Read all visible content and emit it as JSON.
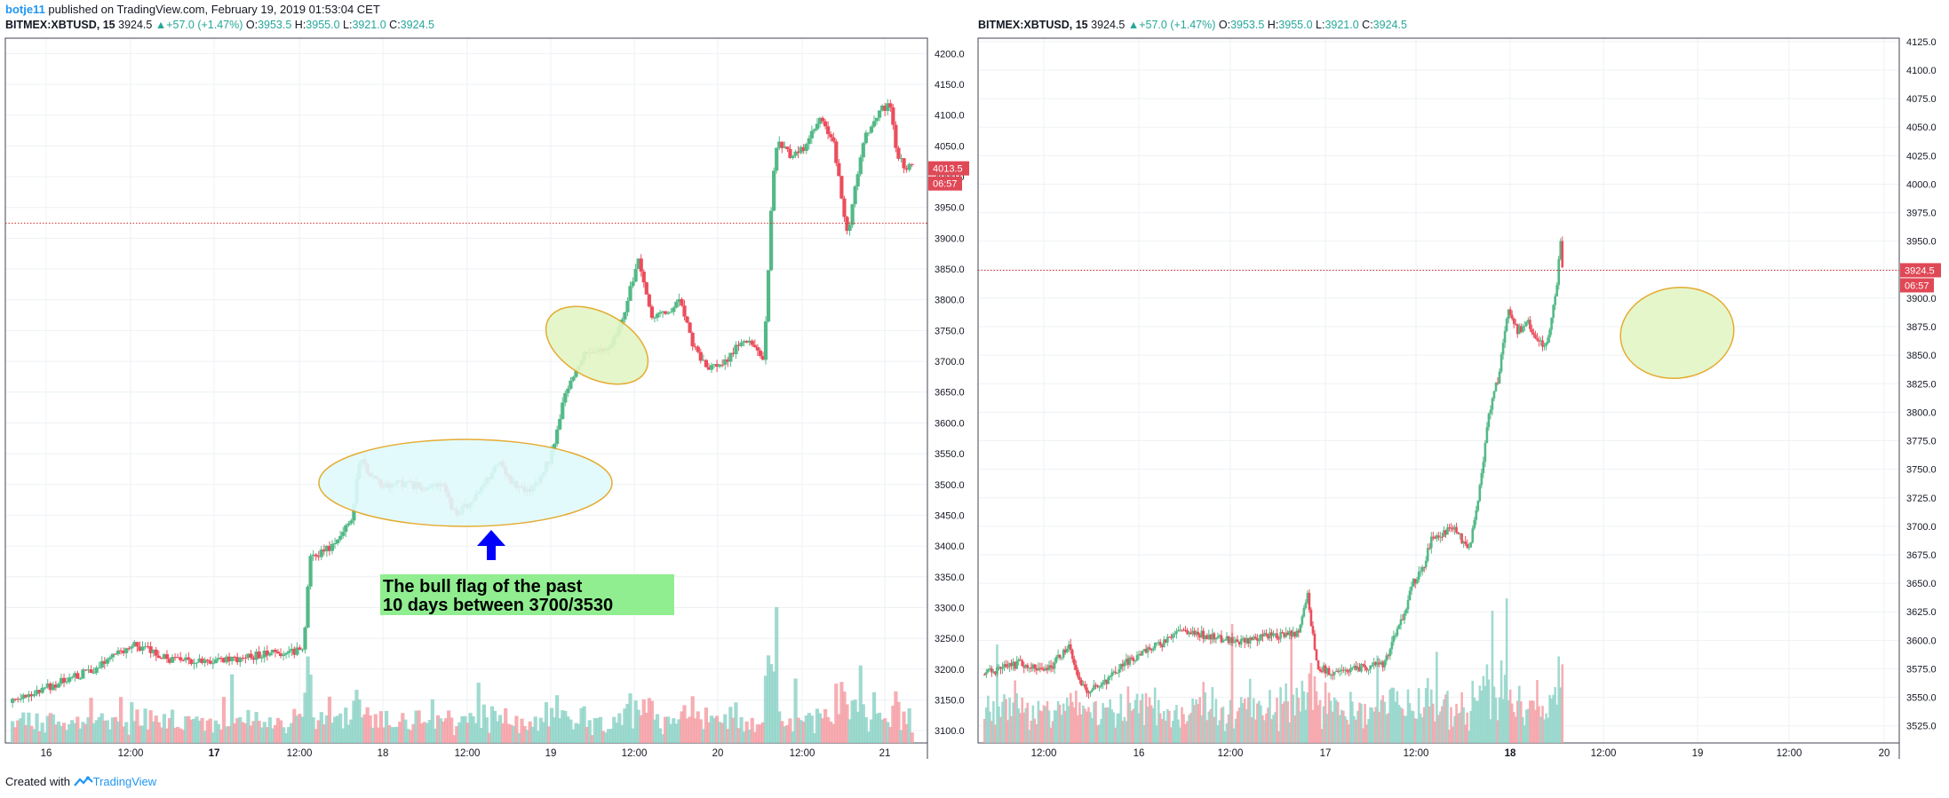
{
  "header": {
    "user": "botje11",
    "text": " published on TradingView.com, February 19, 2019 01:53:04 CET"
  },
  "left_legend": {
    "symbol": "BITMEX:XBTUSD, 15",
    "last": "3924.5",
    "change": "+57.0 (+1.47%)",
    "o_label": "O:",
    "o": "3953.5",
    "h_label": "H:",
    "h": "3955.0",
    "l_label": "L:",
    "l": "3921.0",
    "c_label": "C:",
    "c": "3924.5"
  },
  "right_legend": {
    "symbol": "BITMEX:XBTUSD, 15",
    "last": "3924.5",
    "change": "+57.0 (+1.47%)",
    "o_label": "O:",
    "o": "3953.5",
    "h_label": "H:",
    "h": "3955.0",
    "l_label": "L:",
    "l": "3921.0",
    "c_label": "C:",
    "c": "3924.5"
  },
  "footer": {
    "prefix": "Created with",
    "brand": "TradingView"
  },
  "colors": {
    "up": "#26a69a",
    "down": "#ef5350",
    "up_candle": "#53b987",
    "down_candle": "#eb4d5c",
    "price_line": "#d32f2f",
    "price_badge": "#e04856",
    "grid": "#eef1f4",
    "annotation_green": "#90ee90",
    "arrow": "#0000ff",
    "ellipse_stroke": "#e3a21a"
  },
  "chart_data": [
    {
      "type": "candlestick",
      "symbol": "BITMEX:XBTUSD",
      "interval": "15",
      "ylim": [
        3080,
        4225
      ],
      "y_ticks": [
        3100,
        3150,
        3200,
        3250,
        3300,
        3350,
        3400,
        3450,
        3500,
        3550,
        3600,
        3650,
        3700,
        3750,
        3800,
        3850,
        3900,
        3950,
        4000,
        4050,
        4100,
        4150,
        4200
      ],
      "x_ticks": [
        "16",
        "12:00",
        "17",
        "12:00",
        "18",
        "12:00",
        "19",
        "12:00",
        "20",
        "12:00",
        "21"
      ],
      "x_tick_bold": [
        false,
        false,
        true,
        false,
        false,
        false,
        false,
        false,
        false,
        false,
        false
      ],
      "price_line": 3924.5,
      "last_label": "4013.5",
      "last_price": 4013.5,
      "timer": "06:57",
      "price_path": [
        [
          0,
          3145
        ],
        [
          6,
          3200
        ],
        [
          9,
          3240
        ],
        [
          11,
          3218
        ],
        [
          14,
          3210
        ],
        [
          17,
          3220
        ],
        [
          20,
          3230
        ],
        [
          21,
          3230
        ],
        [
          21.5,
          3380
        ],
        [
          23,
          3400
        ],
        [
          24.5,
          3440
        ],
        [
          25,
          3540
        ],
        [
          26.5,
          3500
        ],
        [
          28,
          3500
        ],
        [
          31,
          3495
        ],
        [
          32,
          3450
        ],
        [
          33.5,
          3480
        ],
        [
          35,
          3540
        ],
        [
          36,
          3500
        ],
        [
          37,
          3490
        ],
        [
          38,
          3510
        ],
        [
          39,
          3560
        ],
        [
          39.6,
          3640
        ],
        [
          41,
          3710
        ],
        [
          42,
          3720
        ],
        [
          43,
          3720
        ],
        [
          44,
          3780
        ],
        [
          45,
          3870
        ],
        [
          46,
          3770
        ],
        [
          47,
          3780
        ],
        [
          48,
          3800
        ],
        [
          49,
          3720
        ],
        [
          50,
          3690
        ],
        [
          51,
          3690
        ],
        [
          52,
          3725
        ],
        [
          53,
          3735
        ],
        [
          54,
          3700
        ],
        [
          54.6,
          3990
        ],
        [
          55,
          4060
        ],
        [
          56,
          4030
        ],
        [
          57,
          4050
        ],
        [
          58,
          4100
        ],
        [
          59,
          4050
        ],
        [
          60,
          3900
        ],
        [
          61,
          4050
        ],
        [
          62,
          4100
        ],
        [
          63,
          4120
        ],
        [
          63.5,
          4040
        ],
        [
          64,
          4020
        ],
        [
          64.6,
          4013.5
        ]
      ],
      "x_span": [
        0,
        64.6
      ],
      "annotations": [
        {
          "type": "ellipse",
          "fill": "#e0fafc"
        },
        {
          "type": "ellipse",
          "fill": "#e3f6c6"
        },
        {
          "type": "arrow",
          "direction": "up"
        },
        {
          "type": "text_box",
          "lines": [
            "The bull flag of the past",
            "10 days between 3700/3530"
          ]
        }
      ]
    },
    {
      "type": "candlestick",
      "symbol": "BITMEX:XBTUSD",
      "interval": "15",
      "ylim": [
        3510,
        4128
      ],
      "y_ticks": [
        3525,
        3550,
        3575,
        3600,
        3625,
        3650,
        3675,
        3700,
        3725,
        3750,
        3775,
        3800,
        3825,
        3850,
        3875,
        3900,
        3925,
        3950,
        3975,
        4000,
        4025,
        4050,
        4075,
        4100,
        4125
      ],
      "x_ticks": [
        "12:00",
        "16",
        "12:00",
        "17",
        "12:00",
        "18",
        "12:00",
        "19",
        "12:00",
        "20"
      ],
      "x_tick_bold": [
        false,
        false,
        false,
        false,
        false,
        true,
        false,
        false,
        false,
        false
      ],
      "price_line": 3924.5,
      "last_label": "3924.5",
      "last_price": 3924.5,
      "timer": "06:57",
      "price_path": [
        [
          0,
          3570
        ],
        [
          4,
          3580
        ],
        [
          7,
          3575
        ],
        [
          9,
          3595
        ],
        [
          10,
          3565
        ],
        [
          11,
          3555
        ],
        [
          13,
          3565
        ],
        [
          15,
          3580
        ],
        [
          17,
          3590
        ],
        [
          19,
          3598
        ],
        [
          21,
          3610
        ],
        [
          23,
          3605
        ],
        [
          26,
          3600
        ],
        [
          28,
          3600
        ],
        [
          30,
          3605
        ],
        [
          33,
          3605
        ],
        [
          34,
          3640
        ],
        [
          35,
          3578
        ],
        [
          37,
          3570
        ],
        [
          39,
          3575
        ],
        [
          42,
          3580
        ],
        [
          44,
          3620
        ],
        [
          45,
          3650
        ],
        [
          46,
          3660
        ],
        [
          47,
          3690
        ],
        [
          48,
          3690
        ],
        [
          49,
          3700
        ],
        [
          51,
          3680
        ],
        [
          52,
          3730
        ],
        [
          53,
          3800
        ],
        [
          54,
          3830
        ],
        [
          55,
          3890
        ],
        [
          56,
          3870
        ],
        [
          57,
          3880
        ],
        [
          58,
          3860
        ],
        [
          59,
          3860
        ],
        [
          60,
          3900
        ],
        [
          60.5,
          3955
        ],
        [
          60.7,
          3924.5
        ]
      ],
      "x_span": [
        0,
        76
      ],
      "annotations": [
        {
          "type": "ellipse",
          "fill": "#e3f6c6"
        }
      ]
    }
  ]
}
